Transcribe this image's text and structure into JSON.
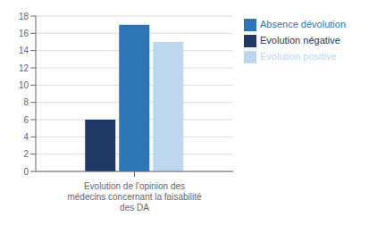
{
  "chart_data": {
    "type": "bar",
    "categories": [
      "Evolution de l'opinion des\nmédecins concernant la faisabilité\ndes DA"
    ],
    "series": [
      {
        "name": "Evolution négative",
        "color": "#1F3864",
        "values": [
          6
        ]
      },
      {
        "name": "Absence dévolution",
        "color": "#2E75B6",
        "values": [
          17
        ]
      },
      {
        "name": "Evolution positive",
        "color": "#BDD7EE",
        "values": [
          15
        ]
      }
    ],
    "ylim": [
      0,
      18
    ],
    "yticks": [
      0,
      2,
      4,
      6,
      8,
      10,
      12,
      14,
      16,
      18
    ],
    "grid": true,
    "legend": "right"
  }
}
